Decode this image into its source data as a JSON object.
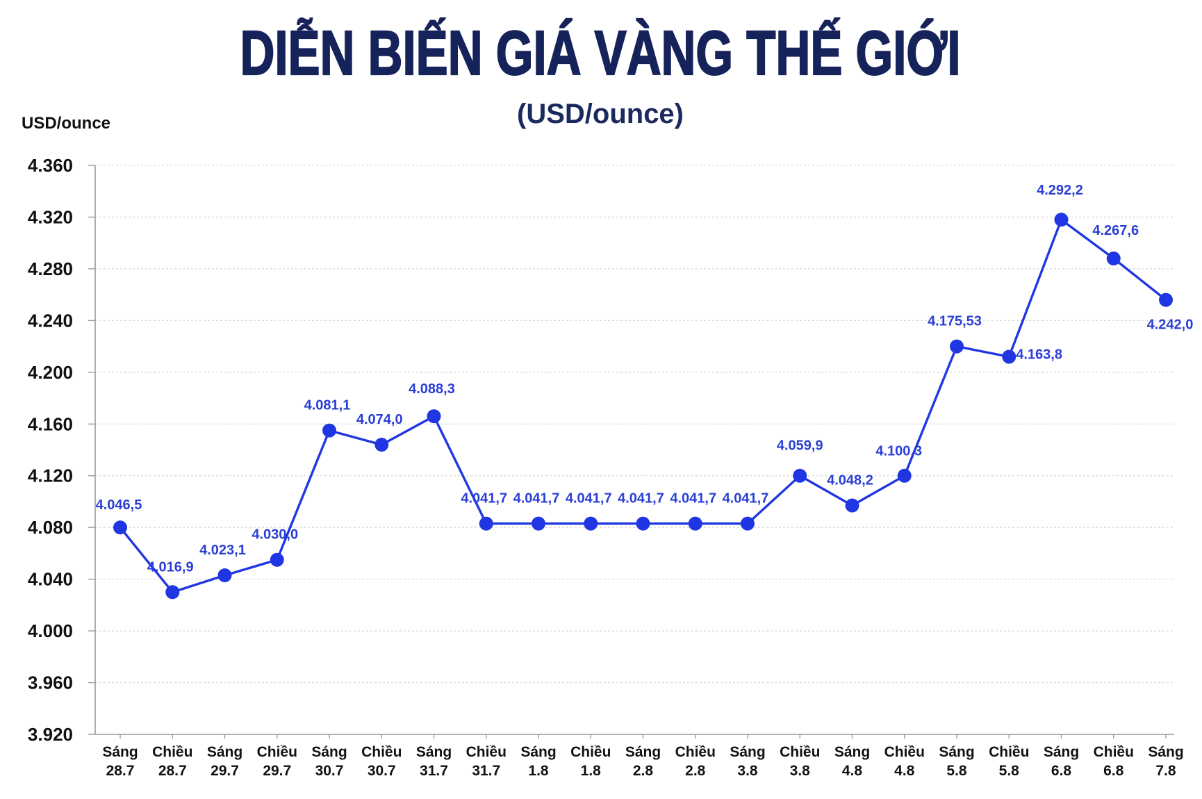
{
  "colors": {
    "title": "#16225a",
    "subtitle": "#1b2a5e",
    "series": "#1f36e2",
    "data_label": "#2a3ed6",
    "axis_text": "#111111",
    "grid": "#d9d9d9"
  },
  "chart_data": {
    "type": "line",
    "title": "DIỄN BIẾN GIÁ VÀNG THẾ GIỚI",
    "subtitle": "(USD/ounce)",
    "xlabel": "",
    "ylabel": "USD/ounce",
    "ylim": [
      3920,
      4360
    ],
    "y_ticks": [
      4360,
      4320,
      4280,
      4240,
      4200,
      4160,
      4120,
      4080,
      4040,
      4000,
      3960,
      3920
    ],
    "y_tick_labels": [
      "4.360",
      "4.320",
      "4.280",
      "4.240",
      "4.200",
      "4.160",
      "4.120",
      "4.080",
      "4.040",
      "4.000",
      "3.960",
      "3.920"
    ],
    "categories": [
      "Sáng 28.7",
      "Chiều 28.7",
      "Sáng 29.7",
      "Chiều 29.7",
      "Sáng 30.7",
      "Chiều 30.7",
      "Sáng 31.7",
      "Chiều 31.7",
      "Sáng 1.8",
      "Chiều 1.8",
      "Sáng 2.8",
      "Chiều 2.8",
      "Sáng 3.8",
      "Chiều 3.8",
      "Sáng 4.8",
      "Chiều 4.8",
      "Sáng 5.8",
      "Chiều 5.8",
      "Sáng 6.8",
      "Chiều 6.8",
      "Sáng 7.8"
    ],
    "series": [
      {
        "values": [
          4046.5,
          4016.9,
          4023.1,
          4030.0,
          4081.1,
          4074.0,
          4088.3,
          4041.7,
          4041.7,
          4041.7,
          4041.7,
          4041.7,
          4041.7,
          4059.9,
          4048.2,
          4100.3,
          4175.53,
          4163.8,
          4292.2,
          4267.6,
          4242.0
        ],
        "data_labels": [
          "4.046,5",
          "4.016,9",
          "4.023,1",
          "4.030,0",
          "4.081,1",
          "4.074,0",
          "4.088,3",
          "4.041,7",
          "4.041,7",
          "4.041,7",
          "4.041,7",
          "4.041,7",
          "4.041,7",
          "4.059,9",
          "4.048,2",
          "4.100,3",
          "4.175,53",
          "4.163,8",
          "4.292,2",
          "4.267,6",
          "4.242,0"
        ],
        "plotted_values": [
          4080,
          4030,
          4043,
          4055,
          4155,
          4144,
          4166,
          4083,
          4083,
          4083,
          4083,
          4083,
          4083,
          4120,
          4097,
          4120,
          4220,
          4212,
          4318,
          4288,
          4256
        ]
      }
    ],
    "grid": true
  }
}
